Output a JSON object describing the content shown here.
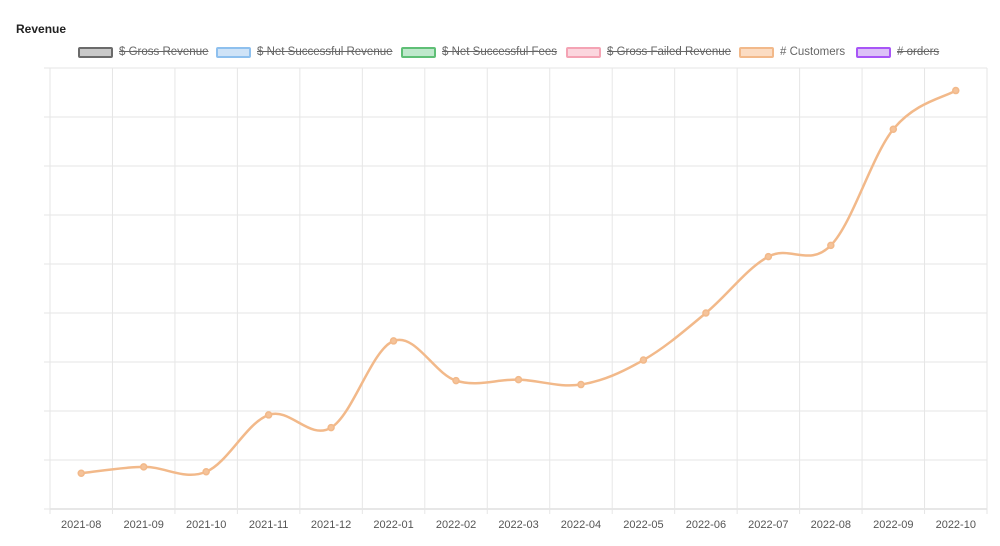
{
  "title": "Revenue",
  "legend": [
    {
      "label": "$ Gross Revenue",
      "fill": "#c9c9c9",
      "stroke": "#6b6b6b",
      "hidden": true
    },
    {
      "label": "$ Net Successful Revenue",
      "fill": "#cfe3f7",
      "stroke": "#8ec0ee",
      "hidden": true
    },
    {
      "label": "$ Net Successful Fees",
      "fill": "#bfe8cc",
      "stroke": "#5fbf76",
      "hidden": true
    },
    {
      "label": "$ Gross Failed Revenue",
      "fill": "#fbd6de",
      "stroke": "#f4a3b4",
      "hidden": true
    },
    {
      "label": "# Customers",
      "fill": "#fbdcc3",
      "stroke": "#f2b98a",
      "hidden": false
    },
    {
      "label": "# orders",
      "fill": "#dcc1f7",
      "stroke": "#a855f7",
      "hidden": true
    }
  ],
  "chart_data": {
    "type": "line",
    "title": "Revenue",
    "categories": [
      "2021-08",
      "2021-09",
      "2021-10",
      "2021-11",
      "2021-12",
      "2022-01",
      "2022-02",
      "2022-03",
      "2022-04",
      "2022-05",
      "2022-06",
      "2022-07",
      "2022-08",
      "2022-09",
      "2022-10"
    ],
    "series": [
      {
        "name": "# Customers",
        "color": "#f2b98a",
        "values": [
          0.73,
          0.86,
          0.76,
          1.92,
          1.66,
          3.43,
          2.62,
          2.64,
          2.54,
          3.04,
          4.0,
          5.15,
          5.38,
          7.75,
          8.54
        ]
      }
    ],
    "ylim": [
      0,
      9
    ],
    "ytick_step": 1,
    "show_y_tick_labels": false,
    "grid": true,
    "legend_position": "top"
  }
}
